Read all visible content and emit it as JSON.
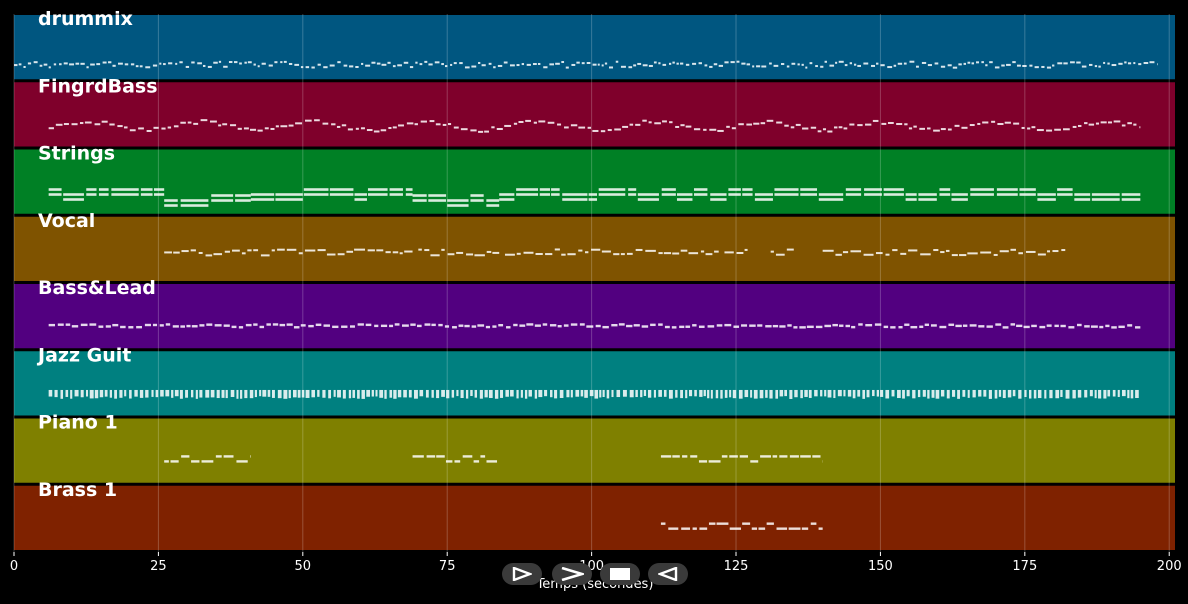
{
  "chart_data": {
    "type": "piano-roll",
    "xlabel": "Temps (secondes)",
    "xlim": [
      0,
      201
    ],
    "xticks": [
      0,
      25,
      50,
      75,
      100,
      125,
      150,
      175,
      200
    ],
    "grid": true,
    "tracks": [
      {
        "name": "drummix",
        "color": "#005680",
        "segments": [
          [
            0,
            198
          ]
        ],
        "style": "dense-low"
      },
      {
        "name": "FingrdBass",
        "color": "#7f002b",
        "segments": [
          [
            6,
            195
          ]
        ],
        "style": "wavy"
      },
      {
        "name": "Strings",
        "color": "#008025",
        "segments": [
          [
            6,
            26
          ],
          [
            26,
            41
          ],
          [
            41,
            69
          ],
          [
            69,
            84
          ],
          [
            84,
            195
          ]
        ],
        "style": "chords"
      },
      {
        "name": "Vocal",
        "color": "#7f5300",
        "segments": [
          [
            26,
            69
          ],
          [
            70,
            84
          ],
          [
            85,
            122
          ],
          [
            123,
            127
          ],
          [
            131,
            135
          ],
          [
            140,
            182
          ]
        ],
        "style": "melody"
      },
      {
        "name": "Bass&Lead",
        "color": "#520080",
        "segments": [
          [
            6,
            195
          ]
        ],
        "style": "dashed"
      },
      {
        "name": "Jazz  Guit",
        "color": "#008080",
        "segments": [
          [
            6,
            195
          ]
        ],
        "style": "comb"
      },
      {
        "name": "Piano 1",
        "color": "#7f8000",
        "segments": [
          [
            26,
            41
          ],
          [
            69,
            84
          ],
          [
            112,
            140
          ]
        ],
        "style": "blocks"
      },
      {
        "name": "Brass 1",
        "color": "#7f2200",
        "segments": [
          [
            112,
            140
          ]
        ],
        "style": "blocks"
      }
    ]
  },
  "controls": [
    {
      "name": "play-button",
      "glyph": "play"
    },
    {
      "name": "forward-button",
      "glyph": "chevron"
    },
    {
      "name": "stop-button",
      "glyph": "stop"
    },
    {
      "name": "rewind-button",
      "glyph": "back"
    }
  ]
}
